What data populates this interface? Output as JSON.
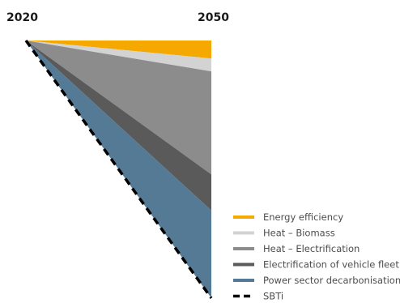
{
  "chart_data": {
    "type": "area",
    "x": [
      "2020",
      "2050"
    ],
    "series": [
      {
        "name": "Energy efficiency",
        "color": "#F5A800",
        "values": [
          0,
          7
        ]
      },
      {
        "name": "Heat – Biomass",
        "color": "#D3D3D3",
        "values": [
          0,
          5
        ]
      },
      {
        "name": "Heat – Electrification",
        "color": "#8C8C8C",
        "values": [
          0,
          40
        ]
      },
      {
        "name": "Electrification of vehicle fleet",
        "color": "#5A5A5A",
        "values": [
          0,
          14
        ]
      },
      {
        "name": "Power sector decarbonisation",
        "color": "#557A95",
        "values": [
          0,
          34
        ]
      }
    ],
    "reference": {
      "name": "SBTi",
      "color": "#000000",
      "style": "dashed",
      "values": [
        0,
        100
      ]
    },
    "ylim": [
      0,
      100
    ],
    "grid": false,
    "legend_position": "bottom-right"
  }
}
